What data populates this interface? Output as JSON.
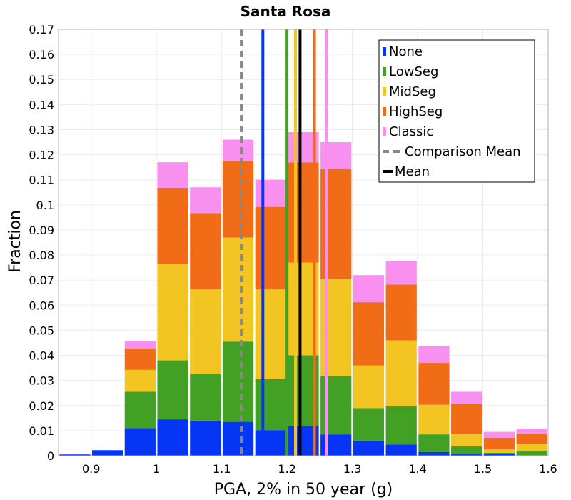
{
  "chart_data": {
    "type": "bar",
    "stacked": true,
    "title": "Santa Rosa",
    "xlabel": "PGA, 2% in 50 year (g)",
    "ylabel": "Fraction",
    "xlim": [
      0.85,
      1.6
    ],
    "ylim": [
      0,
      0.17
    ],
    "grid": true,
    "legend_position": "top-right",
    "bin_width": 0.05,
    "bin_centers": [
      0.875,
      0.925,
      0.975,
      1.025,
      1.075,
      1.125,
      1.175,
      1.225,
      1.275,
      1.325,
      1.375,
      1.425,
      1.475,
      1.525,
      1.575
    ],
    "series": [
      {
        "name": "None",
        "color": "#0535f5",
        "values": [
          0.0005,
          0.0022,
          0.011,
          0.0145,
          0.014,
          0.0135,
          0.0102,
          0.0118,
          0.0085,
          0.006,
          0.0045,
          0.0015,
          0.0007,
          0.0008,
          0.0002
        ]
      },
      {
        "name": "LowSeg",
        "color": "#42a024",
        "values": [
          0.0,
          0.0,
          0.0145,
          0.0235,
          0.0185,
          0.032,
          0.0203,
          0.0282,
          0.0232,
          0.013,
          0.0152,
          0.007,
          0.003,
          0.0004,
          0.0015
        ]
      },
      {
        "name": "MidSeg",
        "color": "#f2c523",
        "values": [
          0.0,
          0.0,
          0.0087,
          0.0383,
          0.0338,
          0.0415,
          0.0358,
          0.037,
          0.0388,
          0.017,
          0.0263,
          0.0118,
          0.0048,
          0.0013,
          0.0029
        ]
      },
      {
        "name": "HighSeg",
        "color": "#f06c17",
        "values": [
          0.0,
          0.0,
          0.0085,
          0.0305,
          0.0304,
          0.0305,
          0.0329,
          0.0399,
          0.0438,
          0.0252,
          0.0222,
          0.0167,
          0.0123,
          0.0047,
          0.0043
        ]
      },
      {
        "name": "Classic",
        "color": "#f890f0",
        "values": [
          0.0,
          0.0,
          0.003,
          0.0102,
          0.0103,
          0.0085,
          0.0108,
          0.0121,
          0.0107,
          0.0108,
          0.0093,
          0.0067,
          0.0047,
          0.0023,
          0.0019
        ]
      }
    ],
    "vertical_lines": [
      {
        "name": "None mean",
        "x": 1.163,
        "ymax": 0.17,
        "color": "#0535f5",
        "style": "solid"
      },
      {
        "name": "LowSeg mean",
        "x": 1.2,
        "ymax": 0.17,
        "color": "#42a024",
        "style": "solid"
      },
      {
        "name": "MidSeg mean",
        "x": 1.213,
        "ymax": 0.17,
        "color": "#f2c523",
        "style": "solid"
      },
      {
        "name": "HighSeg mean",
        "x": 1.242,
        "ymax": 0.17,
        "color": "#f06c17",
        "style": "solid"
      },
      {
        "name": "Classic mean",
        "x": 1.26,
        "ymax": 0.17,
        "color": "#f890f0",
        "style": "solid"
      },
      {
        "name": "Comparison Mean",
        "x": 1.13,
        "ymax": 0.17,
        "color": "#888888",
        "style": "dashed"
      },
      {
        "name": "Mean",
        "x": 1.22,
        "ymax": 0.17,
        "color": "#000000",
        "style": "solid"
      }
    ],
    "x_ticks": [
      "0.9",
      "1",
      "1.1",
      "1.2",
      "1.3",
      "1.4",
      "1.5",
      "1.6"
    ],
    "y_ticks": [
      "0",
      "0.01",
      "0.02",
      "0.03",
      "0.04",
      "0.05",
      "0.06",
      "0.07",
      "0.08",
      "0.09",
      "0.1",
      "0.11",
      "0.12",
      "0.13",
      "0.14",
      "0.15",
      "0.16",
      "0.17"
    ],
    "legend": [
      {
        "label": "None",
        "color": "#0535f5",
        "kind": "box"
      },
      {
        "label": "LowSeg",
        "color": "#42a024",
        "kind": "box"
      },
      {
        "label": "MidSeg",
        "color": "#f2c523",
        "kind": "box"
      },
      {
        "label": "HighSeg",
        "color": "#f06c17",
        "kind": "box"
      },
      {
        "label": "Classic",
        "color": "#f890f0",
        "kind": "box"
      },
      {
        "label": "Comparison Mean",
        "color": "#888888",
        "kind": "dashed"
      },
      {
        "label": "Mean",
        "color": "#000000",
        "kind": "line"
      }
    ]
  }
}
